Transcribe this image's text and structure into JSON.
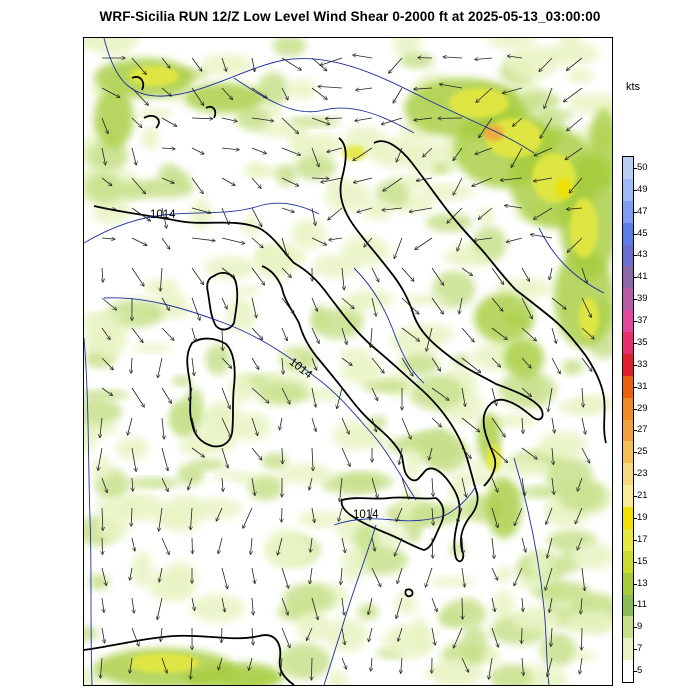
{
  "title": "WRF-Sicilia RUN 12/Z Low Level Wind Shear 0-2000 ft at 2025-05-13_03:00:00",
  "units": "kts",
  "colorbar": {
    "labels": [
      "50",
      "49",
      "47",
      "45",
      "43",
      "41",
      "39",
      "37",
      "35",
      "33",
      "31",
      "29",
      "27",
      "25",
      "23",
      "21",
      "19",
      "17",
      "15",
      "13",
      "11",
      "9",
      "7",
      "5"
    ],
    "colors": [
      "#b9cdf5",
      "#9fb9f2",
      "#7f9ef0",
      "#5e7fe8",
      "#6b6fd0",
      "#8a6aa8",
      "#b65fa8",
      "#e0489c",
      "#e8306a",
      "#e0202c",
      "#ea6010",
      "#ee8a28",
      "#f0a040",
      "#f3bd58",
      "#f5d880",
      "#f8ec98",
      "#f1e000",
      "#e4e840",
      "#c8dc30",
      "#a6cc3c",
      "#8cbc58",
      "#c8e08c",
      "#e8f4c4",
      "#ffffff"
    ]
  },
  "isobar_labels": [
    "1014",
    "1014",
    "1014"
  ]
}
